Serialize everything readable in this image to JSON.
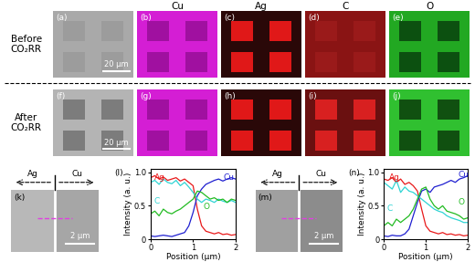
{
  "figure": {
    "row_labels": [
      "Before CO₂RR",
      "After CO₂RR"
    ],
    "element_headers": [
      "Cu",
      "Ag",
      "C",
      "O"
    ],
    "map_panels": [
      {
        "label": "(a)",
        "scale_bar": "20 μm"
      },
      {
        "label": "(b)"
      },
      {
        "label": "(c)"
      },
      {
        "label": "(d)"
      },
      {
        "label": "(e)"
      },
      {
        "label": "(f)",
        "scale_bar": "20 μm"
      },
      {
        "label": "(g)"
      },
      {
        "label": "(h)"
      },
      {
        "label": "(i)"
      },
      {
        "label": "(j)"
      }
    ],
    "linescan_images": [
      {
        "label": "(k)",
        "left": "Ag",
        "right": "Cu",
        "scale_bar": "2 μm"
      },
      {
        "label": "(m)",
        "left": "Ag",
        "right": "Cu",
        "scale_bar": "2 μm"
      }
    ]
  },
  "chart_data": [
    {
      "type": "line",
      "panel": "(l)",
      "xlabel": "Position (μm)",
      "ylabel": "Intensity (a. u.)",
      "x": [
        0,
        0.1,
        0.2,
        0.3,
        0.4,
        0.5,
        0.6,
        0.7,
        0.8,
        0.9,
        1.0,
        1.1,
        1.2,
        1.3,
        1.4,
        1.5,
        1.6,
        1.7,
        1.8,
        1.9,
        2.0
      ],
      "series": [
        {
          "name": "Ag",
          "color": "#e8191a",
          "values": [
            0.92,
            0.95,
            0.9,
            0.93,
            0.88,
            0.9,
            0.92,
            0.87,
            0.9,
            0.85,
            0.8,
            0.45,
            0.2,
            0.12,
            0.1,
            0.08,
            0.1,
            0.07,
            0.08,
            0.06,
            0.07
          ]
        },
        {
          "name": "Cu",
          "color": "#1f1fd0",
          "values": [
            0.05,
            0.04,
            0.05,
            0.06,
            0.05,
            0.04,
            0.06,
            0.08,
            0.1,
            0.2,
            0.4,
            0.65,
            0.75,
            0.82,
            0.85,
            0.88,
            0.9,
            0.87,
            0.9,
            0.92,
            0.9
          ]
        },
        {
          "name": "C",
          "color": "#2fd4d4",
          "values": [
            0.85,
            0.88,
            0.82,
            0.9,
            0.85,
            0.83,
            0.88,
            0.8,
            0.85,
            0.78,
            0.7,
            0.6,
            0.55,
            0.6,
            0.58,
            0.55,
            0.6,
            0.57,
            0.55,
            0.58,
            0.55
          ]
        },
        {
          "name": "O",
          "color": "#22bb22",
          "values": [
            0.38,
            0.42,
            0.35,
            0.45,
            0.4,
            0.38,
            0.42,
            0.45,
            0.5,
            0.55,
            0.6,
            0.72,
            0.7,
            0.65,
            0.6,
            0.62,
            0.58,
            0.6,
            0.55,
            0.6,
            0.58
          ]
        }
      ],
      "xlim": [
        0,
        2
      ],
      "ylim": [
        0,
        1.05
      ],
      "xticks": [
        0,
        1,
        2
      ],
      "yticks": [
        0,
        0.5,
        {
          "value": 1,
          "label": "1.0"
        }
      ]
    },
    {
      "type": "line",
      "panel": "(n)",
      "xlabel": "Position (μm)",
      "ylabel": "Intensity (a. u.)",
      "x": [
        0,
        0.1,
        0.2,
        0.3,
        0.4,
        0.5,
        0.6,
        0.7,
        0.8,
        0.9,
        1.0,
        1.1,
        1.2,
        1.3,
        1.4,
        1.5,
        1.6,
        1.7,
        1.8,
        1.9,
        2.0
      ],
      "series": [
        {
          "name": "Ag",
          "color": "#e8191a",
          "values": [
            0.9,
            0.88,
            0.92,
            0.85,
            0.9,
            0.82,
            0.85,
            0.8,
            0.72,
            0.45,
            0.2,
            0.12,
            0.1,
            0.08,
            0.1,
            0.07,
            0.08,
            0.06,
            0.07,
            0.05,
            0.06
          ]
        },
        {
          "name": "Cu",
          "color": "#1f1fd0",
          "values": [
            0.05,
            0.04,
            0.06,
            0.05,
            0.05,
            0.08,
            0.15,
            0.35,
            0.55,
            0.72,
            0.75,
            0.7,
            0.78,
            0.8,
            0.82,
            0.85,
            0.88,
            0.85,
            0.9,
            0.92,
            0.95
          ]
        },
        {
          "name": "C",
          "color": "#2fd4d4",
          "values": [
            0.85,
            0.8,
            0.75,
            0.88,
            0.7,
            0.78,
            0.72,
            0.7,
            0.65,
            0.6,
            0.55,
            0.5,
            0.45,
            0.42,
            0.4,
            0.35,
            0.32,
            0.3,
            0.28,
            0.25,
            0.25
          ]
        },
        {
          "name": "O",
          "color": "#22bb22",
          "values": [
            0.2,
            0.25,
            0.2,
            0.3,
            0.25,
            0.3,
            0.35,
            0.45,
            0.6,
            0.75,
            0.78,
            0.6,
            0.5,
            0.45,
            0.5,
            0.42,
            0.4,
            0.38,
            0.35,
            0.3,
            0.32
          ]
        }
      ],
      "xlim": [
        0,
        2
      ],
      "ylim": [
        0,
        1.05
      ],
      "xticks": [
        0,
        1,
        2
      ],
      "yticks": [
        0,
        0.5,
        {
          "value": 1,
          "label": "1.0"
        }
      ]
    }
  ]
}
